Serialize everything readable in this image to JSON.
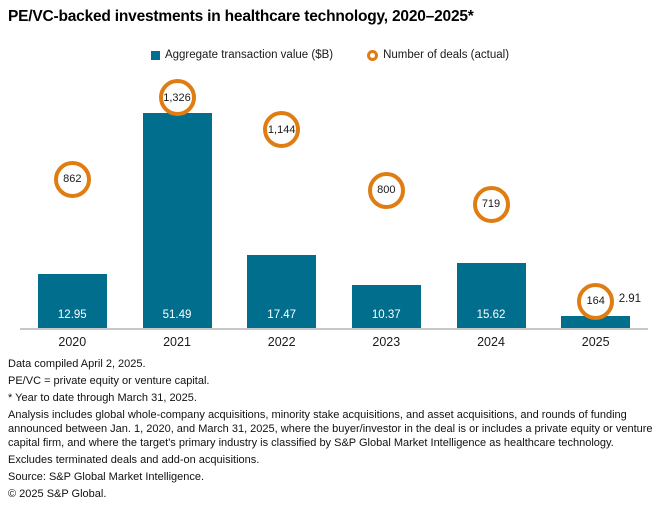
{
  "title": "PE/VC-backed investments in healthcare technology, 2020–2025*",
  "legend": {
    "bar_label": "Aggregate transaction value ($B)",
    "deals_label": "Number of deals (actual)"
  },
  "colors": {
    "bar": "#006e8c",
    "deals_ring": "#e07d12",
    "axis_line": "#c8c8c8",
    "bar_value_text": "#ffffff",
    "text": "#1a1a1a"
  },
  "chart_data": {
    "type": "bar",
    "title": "PE/VC-backed investments in healthcare technology, 2020–2025*",
    "categories": [
      "2020",
      "2021",
      "2022",
      "2023",
      "2024",
      "2025"
    ],
    "series": [
      {
        "name": "Aggregate transaction value ($B)",
        "type": "bar",
        "values": [
          12.95,
          51.49,
          17.47,
          10.37,
          15.62,
          2.91
        ],
        "labels": [
          "12.95",
          "51.49",
          "17.47",
          "10.37",
          "15.62",
          "2.91"
        ]
      },
      {
        "name": "Number of deals (actual)",
        "type": "point",
        "values": [
          862,
          1326,
          1144,
          800,
          719,
          164
        ],
        "labels": [
          "862",
          "1,326",
          "1,144",
          "800",
          "719",
          "164"
        ]
      }
    ],
    "xlabel": "",
    "ylabel": "",
    "bar_axis_max": 58.7,
    "deals_axis_max": 1400,
    "grid": false,
    "legend_position": "top-center"
  },
  "footnotes": [
    "Data compiled April 2, 2025.",
    "PE/VC = private equity or venture capital.",
    "* Year to date through March 31, 2025.",
    "Analysis includes global whole-company acquisitions, minority stake acquisitions, and asset acquisitions, and rounds of funding announced between Jan. 1, 2020, and March 31, 2025, where the buyer/investor in the deal is or includes a private equity or venture capital firm, and where the target's primary industry is classified by S&P Global Market Intelligence as healthcare technology.",
    "Excludes terminated deals and add-on acquisitions.",
    "Source: S&P Global Market Intelligence.",
    "© 2025 S&P Global."
  ]
}
